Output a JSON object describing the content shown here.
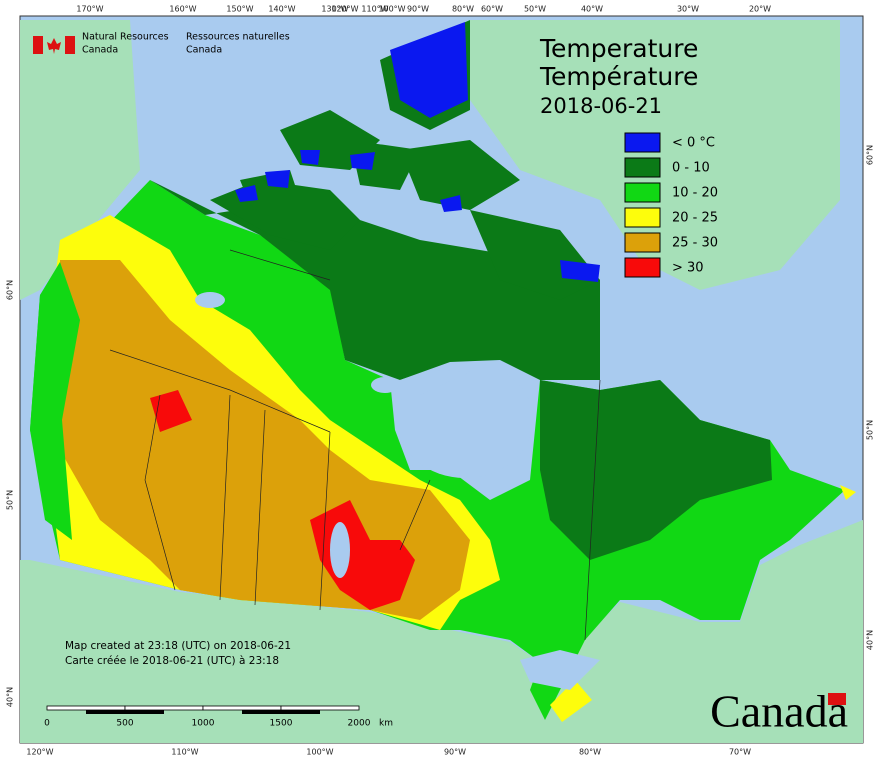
{
  "header": {
    "department_en": [
      "Natural Resources",
      "Canada"
    ],
    "department_fr": [
      "Ressources naturelles",
      "Canada"
    ]
  },
  "title": {
    "line_en": "Temperature",
    "line_fr": "Température",
    "date": "2018-06-21"
  },
  "legend": [
    {
      "label": "< 0 °C",
      "color": "#0a18f0"
    },
    {
      "label": "0 - 10",
      "color": "#0b7a17"
    },
    {
      "label": "10 - 20",
      "color": "#11d814"
    },
    {
      "label": "20 - 25",
      "color": "#fdfd0c"
    },
    {
      "label": "25 - 30",
      "color": "#dca10a"
    },
    {
      "label": "> 30",
      "color": "#f80a0a"
    }
  ],
  "graticule": {
    "top": [
      "170°W",
      "160°W",
      "150°W",
      "140°W",
      "130°W",
      "120°W",
      "110°W",
      "100°W",
      "90°W",
      "80°W",
      "60°W",
      "50°W",
      "40°W",
      "30°W",
      "20°W"
    ],
    "bottom": [
      "120°W",
      "110°W",
      "100°W",
      "90°W",
      "80°W",
      "70°W"
    ],
    "left": [
      "60°N",
      "50°N",
      "40°N"
    ],
    "right": [
      "60°N",
      "50°N",
      "40°N"
    ]
  },
  "note": {
    "en": "Map created at 23:18 (UTC) on 2018-06-21",
    "fr": "Carte créée le 2018-06-21 (UTC) à 23:18"
  },
  "scale_bar": {
    "ticks": [
      "0",
      "500",
      "1000",
      "1500",
      "2000"
    ],
    "unit": "km"
  },
  "wordmark": "Canada"
}
